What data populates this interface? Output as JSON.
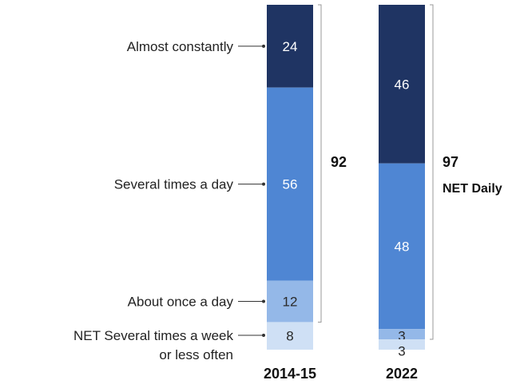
{
  "chart_data": {
    "type": "bar",
    "stacked": true,
    "orientation": "vertical",
    "categories": [
      "2014-15",
      "2022"
    ],
    "series": [
      {
        "name": "Almost constantly",
        "values": [
          24,
          46
        ],
        "color": "#1f3463"
      },
      {
        "name": "Several times a day",
        "values": [
          56,
          48
        ],
        "color": "#4f86d3"
      },
      {
        "name": "About once a day",
        "values": [
          12,
          3
        ],
        "color": "#94b8e8"
      },
      {
        "name": "NET Several times a week or less often",
        "values": [
          8,
          3
        ],
        "color": "#cfe0f5"
      }
    ],
    "segment_labels": [
      [
        "24",
        "56",
        "12",
        "8"
      ],
      [
        "46",
        "48",
        "3",
        "3"
      ]
    ],
    "category_labels": [
      {
        "lines": [
          "Almost constantly"
        ]
      },
      {
        "lines": [
          "Several times a day"
        ]
      },
      {
        "lines": [
          "About once a day"
        ]
      },
      {
        "lines": [
          "NET Several times a week",
          "or less often"
        ]
      }
    ],
    "net_daily": [
      {
        "value": "92",
        "label": ""
      },
      {
        "value": "97",
        "label": "NET Daily"
      }
    ]
  }
}
